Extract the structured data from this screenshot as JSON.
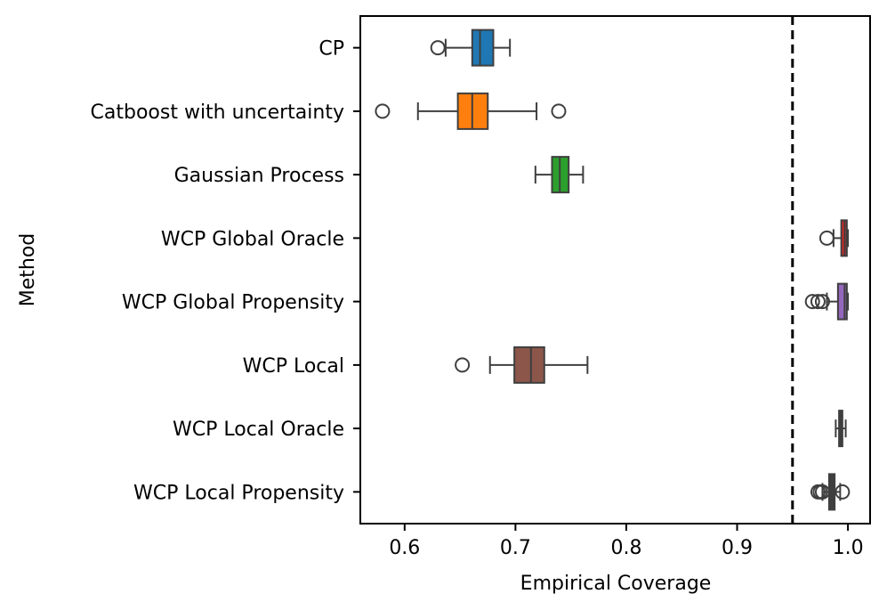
{
  "chart_data": {
    "type": "boxplot",
    "orientation": "horizontal",
    "title": "",
    "xlabel": "Empirical Coverage",
    "ylabel": "Method",
    "xlim": [
      0.56,
      1.02
    ],
    "xticks": [
      0.6,
      0.7,
      0.8,
      0.9,
      1.0
    ],
    "xtick_labels": [
      "0.6",
      "0.7",
      "0.8",
      "0.9",
      "1.0"
    ],
    "reference_line": {
      "x": 0.95,
      "style": "dashed",
      "color": "#000000"
    },
    "grid": false,
    "categories": [
      "CP",
      "Catboost with uncertainty",
      "Gaussian Process",
      "WCP Global Oracle",
      "WCP Global Propensity",
      "WCP Local",
      "WCP Local Oracle",
      "WCP Local Propensity"
    ],
    "series": [
      {
        "name": "CP",
        "color": "#1f77b4",
        "whisker_low": 0.637,
        "q1": 0.661,
        "median": 0.668,
        "q3": 0.68,
        "whisker_high": 0.695,
        "outliers": [
          0.63
        ]
      },
      {
        "name": "Catboost with uncertainty",
        "color": "#ff7f0e",
        "whisker_low": 0.612,
        "q1": 0.648,
        "median": 0.661,
        "q3": 0.675,
        "whisker_high": 0.719,
        "outliers": [
          0.58,
          0.739
        ]
      },
      {
        "name": "Gaussian Process",
        "color": "#2ca02c",
        "whisker_low": 0.718,
        "q1": 0.733,
        "median": 0.74,
        "q3": 0.748,
        "whisker_high": 0.761,
        "outliers": []
      },
      {
        "name": "WCP Global Oracle",
        "color": "#d62728",
        "whisker_low": 0.987,
        "q1": 0.994,
        "median": 0.997,
        "q3": 0.999,
        "whisker_high": 1.0,
        "outliers": [
          0.981
        ]
      },
      {
        "name": "WCP Global Propensity",
        "color": "#9467bd",
        "whisker_low": 0.981,
        "q1": 0.991,
        "median": 0.997,
        "q3": 0.999,
        "whisker_high": 1.0,
        "outliers": [
          0.968,
          0.973,
          0.977
        ]
      },
      {
        "name": "WCP Local",
        "color": "#8c564b",
        "whisker_low": 0.677,
        "q1": 0.699,
        "median": 0.714,
        "q3": 0.726,
        "whisker_high": 0.765,
        "outliers": [
          0.652
        ]
      },
      {
        "name": "WCP Local Oracle",
        "color": "#3f3f3f",
        "whisker_low": 0.989,
        "q1": 0.992,
        "median": 0.994,
        "q3": 0.995,
        "whisker_high": 0.998,
        "outliers": []
      },
      {
        "name": "WCP Local Propensity",
        "color": "#3f3f3f",
        "whisker_low": 0.977,
        "q1": 0.983,
        "median": 0.986,
        "q3": 0.988,
        "whisker_high": 0.993,
        "outliers": [
          0.973,
          0.975,
          0.977,
          0.995
        ]
      }
    ]
  }
}
